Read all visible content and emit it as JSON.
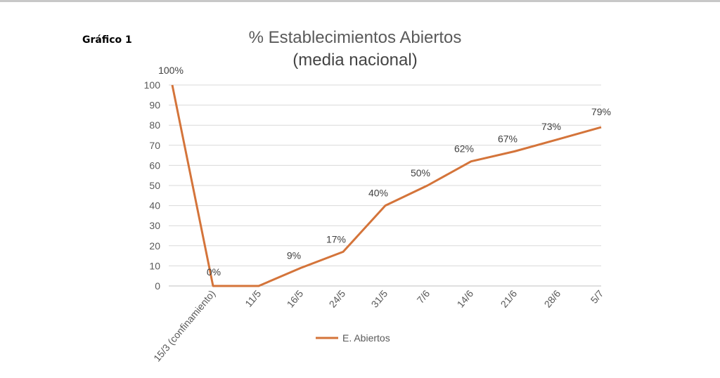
{
  "figure_label": "Gráfico 1",
  "chart_data": {
    "type": "line",
    "title": "% Establecimientos Abiertos",
    "subtitle": "(media nacional)",
    "xlabel": "",
    "ylabel": "",
    "categories": [
      "15/3 (confinamiento)",
      "11/5",
      "16/5",
      "24/5",
      "31/5",
      "7/6",
      "14/6",
      "21/6",
      "28/6",
      "5/7"
    ],
    "ylim": [
      0,
      100
    ],
    "yticks": [
      0,
      10,
      20,
      30,
      40,
      50,
      60,
      70,
      80,
      90,
      100
    ],
    "grid": true,
    "legend_position": "bottom",
    "series": [
      {
        "name": "E. Abiertos",
        "color": "#d4743a",
        "points": [
          {
            "x": "15/3 (confinamiento)",
            "y": 100,
            "label": "100%"
          },
          {
            "x": "15/3 (confinamiento)",
            "y": 0,
            "label": "0%"
          },
          {
            "x": "11/5",
            "y": 0,
            "label": ""
          },
          {
            "x": "16/5",
            "y": 9,
            "label": "9%"
          },
          {
            "x": "24/5",
            "y": 17,
            "label": "17%"
          },
          {
            "x": "31/5",
            "y": 40,
            "label": "40%"
          },
          {
            "x": "7/6",
            "y": 50,
            "label": "50%"
          },
          {
            "x": "14/6",
            "y": 62,
            "label": "62%"
          },
          {
            "x": "21/6",
            "y": 67,
            "label": "67%"
          },
          {
            "x": "28/6",
            "y": 73,
            "label": "73%"
          },
          {
            "x": "5/7",
            "y": 79,
            "label": "79%"
          }
        ]
      }
    ]
  }
}
